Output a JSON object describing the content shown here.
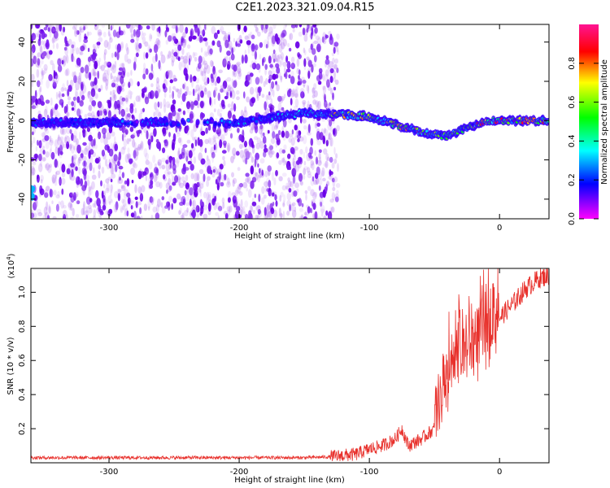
{
  "title": "C2E1.2023.321.09.04.R15",
  "chart_data": [
    {
      "type": "heatmap",
      "xlabel": "Height of straight line (km)",
      "ylabel": "Frequency (Hz)",
      "xlim": [
        -360,
        38
      ],
      "ylim": [
        -50,
        49
      ],
      "xticks": [
        -300,
        -200,
        -100,
        0
      ],
      "yticks": [
        -40,
        -20,
        0,
        20,
        40
      ],
      "colorbar": {
        "label": "Normalized spectral amplitude",
        "range": [
          0.0,
          1.0
        ],
        "ticks": [
          0.0,
          0.2,
          0.4,
          0.6,
          0.8
        ],
        "colors": [
          "#ff00ff",
          "#0000ff",
          "#00ffff",
          "#00ff00",
          "#ffff00",
          "#ff0000",
          "#ff1493"
        ]
      },
      "ridge": [
        {
          "x": -320,
          "y": -1
        },
        {
          "x": -280,
          "y": -1
        },
        {
          "x": -200,
          "y": -1
        },
        {
          "x": -150,
          "y": 4
        },
        {
          "x": -120,
          "y": 3
        },
        {
          "x": -100,
          "y": 2
        },
        {
          "x": -80,
          "y": -2
        },
        {
          "x": -60,
          "y": -6
        },
        {
          "x": -40,
          "y": -8
        },
        {
          "x": -30,
          "y": -5
        },
        {
          "x": -10,
          "y": 0
        },
        {
          "x": 0,
          "y": 0
        },
        {
          "x": 38,
          "y": 0
        }
      ],
      "noise_region_end_x": -130
    },
    {
      "type": "line",
      "xlabel": "Height of straight line (km)",
      "ylabel": "SNR (10 * v/v)",
      "y_multiplier": "(x10",
      "y_multiplier_exp": "4",
      "xlim": [
        -360,
        38
      ],
      "ylim": [
        0,
        1.14
      ],
      "xticks": [
        -300,
        -200,
        -100,
        0
      ],
      "yticks": [
        0.2,
        0.4,
        0.6,
        0.8,
        1.0
      ],
      "color": "#e8312c",
      "series": [
        {
          "x": [
            -360,
            -300,
            -250,
            -200,
            -150,
            -130,
            -110,
            -100,
            -90,
            -80,
            -75,
            -70,
            -60,
            -50,
            -45,
            -40,
            -35,
            -30,
            -25,
            -20,
            -10,
            0,
            10,
            20,
            30,
            38
          ],
          "y": [
            0.03,
            0.03,
            0.03,
            0.03,
            0.03,
            0.035,
            0.05,
            0.08,
            0.1,
            0.14,
            0.2,
            0.1,
            0.14,
            0.2,
            0.3,
            0.45,
            0.55,
            0.6,
            0.62,
            0.65,
            0.75,
            0.85,
            0.93,
            1.02,
            1.08,
            1.1
          ]
        }
      ]
    }
  ]
}
